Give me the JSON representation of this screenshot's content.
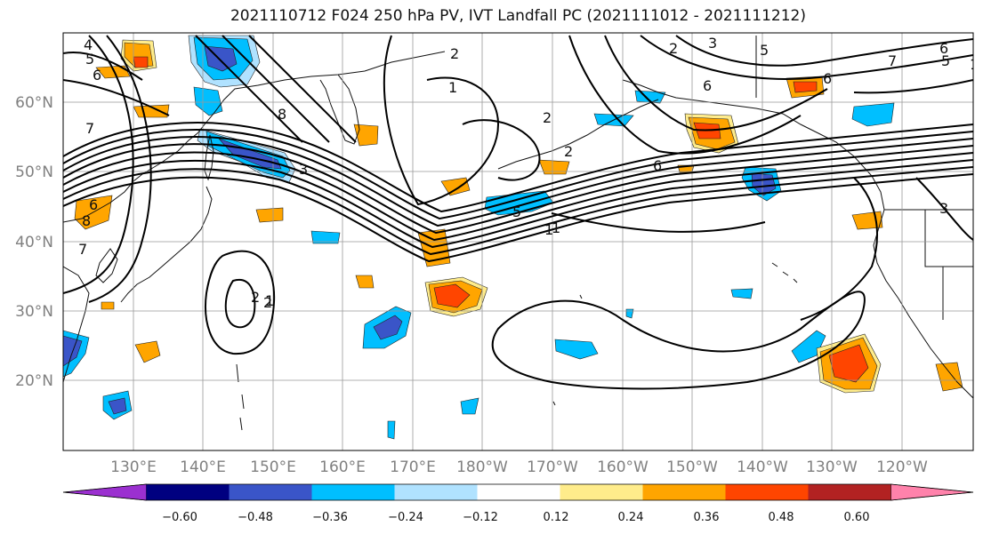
{
  "title": "2021110712 F024 250 hPa PV, IVT Landfall PC (2021111012 - 2021111212)",
  "lat_ticks": [
    "60°N",
    "50°N",
    "40°N",
    "30°N",
    "20°N"
  ],
  "lon_ticks": [
    "130°E",
    "140°E",
    "150°E",
    "160°E",
    "170°E",
    "180°W",
    "170°W",
    "160°W",
    "150°W",
    "140°W",
    "130°W",
    "120°W"
  ],
  "colorbar": {
    "ticks": [
      "−0.60",
      "−0.48",
      "−0.36",
      "−0.24",
      "−0.12",
      "0.12",
      "0.24",
      "0.36",
      "0.48",
      "0.60"
    ],
    "colors": [
      "#9b30d0",
      "#000080",
      "#3a55c8",
      "#00bfff",
      "#b0e2ff",
      "#ffffff",
      "#ffec8b",
      "#ffa500",
      "#ff4500",
      "#b22222",
      "#ff82ab"
    ]
  },
  "contour_labels": [
    "4",
    "5",
    "6",
    "7",
    "8",
    "1",
    "2",
    "2",
    "1",
    "2",
    "3",
    "5",
    "6",
    "1",
    "2",
    "5",
    "6",
    "2",
    "1",
    "6",
    "7",
    "6",
    "5",
    "3",
    "8",
    "6",
    "7",
    "3",
    "2",
    "1"
  ]
}
